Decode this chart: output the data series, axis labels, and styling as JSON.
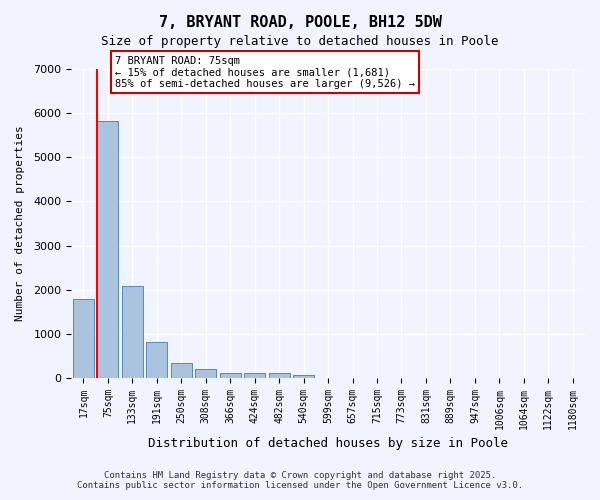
{
  "title1": "7, BRYANT ROAD, POOLE, BH12 5DW",
  "title2": "Size of property relative to detached houses in Poole",
  "xlabel": "Distribution of detached houses by size in Poole",
  "ylabel": "Number of detached properties",
  "categories": [
    "17sqm",
    "75sqm",
    "133sqm",
    "191sqm",
    "250sqm",
    "308sqm",
    "366sqm",
    "424sqm",
    "482sqm",
    "540sqm",
    "599sqm",
    "657sqm",
    "715sqm",
    "773sqm",
    "831sqm",
    "889sqm",
    "947sqm",
    "1006sqm",
    "1064sqm",
    "1122sqm",
    "1180sqm"
  ],
  "values": [
    1780,
    5820,
    2080,
    820,
    340,
    190,
    120,
    100,
    100,
    70,
    0,
    0,
    0,
    0,
    0,
    0,
    0,
    0,
    0,
    0,
    0
  ],
  "bar_color": "#aac4e0",
  "bar_edge_color": "#5588bb",
  "highlight_index": 1,
  "red_line_x": 1,
  "annotation_title": "7 BRYANT ROAD: 75sqm",
  "annotation_line1": "← 15% of detached houses are smaller (1,681)",
  "annotation_line2": "85% of semi-detached houses are larger (9,526) →",
  "annotation_box_color": "#ffffff",
  "annotation_box_edge": "#cc0000",
  "ylim": [
    0,
    7000
  ],
  "yticks": [
    0,
    1000,
    2000,
    3000,
    4000,
    5000,
    6000,
    7000
  ],
  "footer1": "Contains HM Land Registry data © Crown copyright and database right 2025.",
  "footer2": "Contains public sector information licensed under the Open Government Licence v3.0.",
  "bg_color": "#f0f4ff",
  "plot_bg_color": "#f0f4ff",
  "grid_color": "#ffffff"
}
